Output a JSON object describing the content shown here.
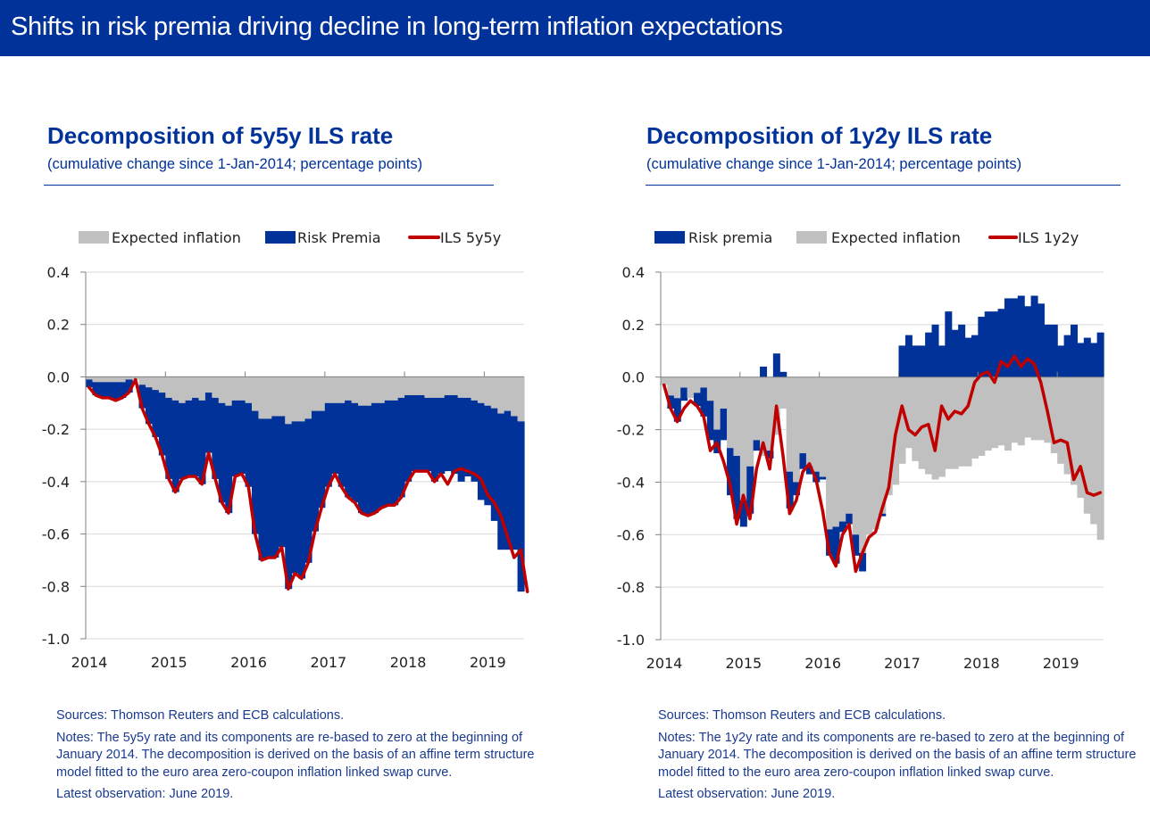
{
  "header": {
    "title": "Shifts in risk premia driving decline in long-term inflation expectations"
  },
  "colors": {
    "brand": "#003299",
    "risk_premia": "#003299",
    "expected_inflation": "#c0c0c0",
    "ils_line": "#c00000",
    "grid": "#d9d9d9",
    "axis": "#808080"
  },
  "chart_data": [
    {
      "type": "bar",
      "stacked": true,
      "title": "Decomposition of 5y5y ILS rate",
      "subtitle": "(cumulative change since 1-Jan-2014; percentage points)",
      "xlabel": "",
      "ylabel": "",
      "ylim": [
        -1.0,
        0.4
      ],
      "yticks": [
        "0.4",
        "0.2",
        "0.0",
        "-0.2",
        "-0.4",
        "-0.6",
        "-0.8",
        "-1.0"
      ],
      "ytick_values": [
        0.4,
        0.2,
        0.0,
        -0.2,
        -0.4,
        -0.6,
        -0.8,
        -1.0
      ],
      "xticks": [
        "2014",
        "2015",
        "2016",
        "2017",
        "2018",
        "2019"
      ],
      "grid": true,
      "legend_position": "top",
      "legend": [
        {
          "name": "Expected inflation",
          "kind": "bar",
          "color": "#c0c0c0"
        },
        {
          "name": "Risk Premia",
          "kind": "bar",
          "color": "#003299"
        },
        {
          "name": "ILS 5y5y",
          "kind": "line",
          "color": "#c00000"
        }
      ],
      "frequency": "monthly",
      "start": "2014-01",
      "end": "2019-06",
      "series": [
        {
          "name": "Expected inflation",
          "values": [
            -0.01,
            -0.02,
            -0.02,
            -0.02,
            -0.02,
            -0.02,
            -0.01,
            -0.01,
            -0.03,
            -0.04,
            -0.05,
            -0.06,
            -0.08,
            -0.09,
            -0.1,
            -0.09,
            -0.08,
            -0.09,
            -0.06,
            -0.08,
            -0.1,
            -0.11,
            -0.09,
            -0.09,
            -0.1,
            -0.13,
            -0.16,
            -0.16,
            -0.15,
            -0.15,
            -0.18,
            -0.17,
            -0.17,
            -0.16,
            -0.13,
            -0.13,
            -0.1,
            -0.1,
            -0.1,
            -0.09,
            -0.1,
            -0.11,
            -0.11,
            -0.1,
            -0.1,
            -0.09,
            -0.09,
            -0.08,
            -0.07,
            -0.07,
            -0.07,
            -0.08,
            -0.08,
            -0.08,
            -0.07,
            -0.07,
            -0.08,
            -0.08,
            -0.09,
            -0.1,
            -0.11,
            -0.12,
            -0.14,
            -0.13,
            -0.15,
            -0.17
          ]
        },
        {
          "name": "Risk Premia",
          "values": [
            -0.03,
            -0.05,
            -0.06,
            -0.06,
            -0.07,
            -0.06,
            -0.05,
            0.0,
            -0.09,
            -0.14,
            -0.18,
            -0.24,
            -0.31,
            -0.35,
            -0.29,
            -0.29,
            -0.3,
            -0.32,
            -0.23,
            -0.31,
            -0.38,
            -0.41,
            -0.29,
            -0.28,
            -0.32,
            -0.47,
            -0.54,
            -0.53,
            -0.54,
            -0.5,
            -0.63,
            -0.58,
            -0.6,
            -0.55,
            -0.46,
            -0.37,
            -0.32,
            -0.27,
            -0.32,
            -0.37,
            -0.38,
            -0.41,
            -0.42,
            -0.42,
            -0.4,
            -0.4,
            -0.4,
            -0.38,
            -0.33,
            -0.29,
            -0.29,
            -0.28,
            -0.32,
            -0.29,
            -0.29,
            -0.3,
            -0.32,
            -0.3,
            -0.31,
            -0.37,
            -0.38,
            -0.43,
            -0.52,
            -0.53,
            -0.51,
            -0.65
          ]
        },
        {
          "name": "ILS 5y5y",
          "values": [
            -0.04,
            -0.07,
            -0.08,
            -0.08,
            -0.09,
            -0.08,
            -0.06,
            -0.01,
            -0.12,
            -0.18,
            -0.23,
            -0.3,
            -0.39,
            -0.44,
            -0.39,
            -0.38,
            -0.38,
            -0.41,
            -0.29,
            -0.39,
            -0.48,
            -0.52,
            -0.38,
            -0.37,
            -0.42,
            -0.6,
            -0.7,
            -0.69,
            -0.69,
            -0.65,
            -0.81,
            -0.75,
            -0.77,
            -0.71,
            -0.59,
            -0.5,
            -0.42,
            -0.37,
            -0.42,
            -0.46,
            -0.48,
            -0.52,
            -0.53,
            -0.52,
            -0.5,
            -0.49,
            -0.49,
            -0.46,
            -0.4,
            -0.36,
            -0.36,
            -0.36,
            -0.4,
            -0.37,
            -0.41,
            -0.36,
            -0.35,
            -0.36,
            -0.37,
            -0.39,
            -0.45,
            -0.48,
            -0.53,
            -0.61,
            -0.69,
            -0.66,
            -0.82
          ]
        }
      ]
    },
    {
      "type": "bar",
      "stacked": true,
      "title": "Decomposition of 1y2y ILS rate",
      "subtitle": "(cumulative change since 1-Jan-2014; percentage points)",
      "xlabel": "",
      "ylabel": "",
      "ylim": [
        -1.0,
        0.4
      ],
      "yticks": [
        "0.4",
        "0.2",
        "0.0",
        "-0.2",
        "-0.4",
        "-0.6",
        "-0.8",
        "-1.0"
      ],
      "ytick_values": [
        0.4,
        0.2,
        0.0,
        -0.2,
        -0.4,
        -0.6,
        -0.8,
        -1.0
      ],
      "xticks": [
        "2014",
        "2015",
        "2016",
        "2017",
        "2018",
        "2019"
      ],
      "grid": true,
      "legend_position": "top",
      "legend": [
        {
          "name": "Risk premia",
          "kind": "bar",
          "color": "#003299"
        },
        {
          "name": "Expected inflation",
          "kind": "bar",
          "color": "#c0c0c0"
        },
        {
          "name": "ILS 1y2y",
          "kind": "line",
          "color": "#c00000"
        }
      ],
      "frequency": "monthly",
      "start": "2014-01",
      "end": "2019-06",
      "series": [
        {
          "name": "Risk premia",
          "values": [
            0.0,
            -0.05,
            -0.09,
            -0.05,
            -0.0,
            -0.05,
            -0.11,
            -0.15,
            -0.09,
            -0.12,
            -0.18,
            -0.24,
            -0.1,
            -0.18,
            -0.04,
            0.04,
            -0.03,
            0.09,
            0.02,
            -0.14,
            -0.05,
            -0.06,
            -0.03,
            -0.04,
            -0.01,
            -0.1,
            -0.14,
            -0.04,
            -0.04,
            -0.08,
            -0.07,
            0.0,
            0.0,
            -0.01,
            -0.0,
            0.0,
            0.12,
            0.16,
            0.12,
            0.12,
            0.17,
            0.2,
            0.12,
            0.25,
            0.18,
            0.2,
            0.15,
            0.16,
            0.23,
            0.25,
            0.25,
            0.26,
            0.3,
            0.3,
            0.31,
            0.27,
            0.31,
            0.28,
            0.2,
            0.2,
            0.12,
            0.16,
            0.2,
            0.13,
            0.15,
            0.13,
            0.17
          ]
        },
        {
          "name": "Expected inflation",
          "values": [
            -0.03,
            -0.07,
            -0.08,
            -0.04,
            -0.08,
            -0.06,
            -0.04,
            -0.09,
            -0.2,
            -0.12,
            -0.27,
            -0.3,
            -0.47,
            -0.34,
            -0.24,
            -0.3,
            -0.28,
            -0.22,
            -0.12,
            -0.36,
            -0.4,
            -0.29,
            -0.34,
            -0.36,
            -0.38,
            -0.58,
            -0.57,
            -0.55,
            -0.52,
            -0.6,
            -0.67,
            -0.6,
            -0.58,
            -0.52,
            -0.45,
            -0.41,
            -0.33,
            -0.27,
            -0.32,
            -0.35,
            -0.37,
            -0.39,
            -0.38,
            -0.35,
            -0.35,
            -0.34,
            -0.34,
            -0.31,
            -0.3,
            -0.28,
            -0.27,
            -0.26,
            -0.28,
            -0.25,
            -0.26,
            -0.23,
            -0.24,
            -0.24,
            -0.25,
            -0.29,
            -0.33,
            -0.37,
            -0.41,
            -0.46,
            -0.52,
            -0.56,
            -0.62
          ]
        },
        {
          "name": "ILS 1y2y",
          "values": [
            -0.03,
            -0.12,
            -0.17,
            -0.12,
            -0.09,
            -0.11,
            -0.15,
            -0.28,
            -0.25,
            -0.32,
            -0.41,
            -0.56,
            -0.45,
            -0.54,
            -0.35,
            -0.25,
            -0.35,
            -0.11,
            -0.3,
            -0.52,
            -0.47,
            -0.36,
            -0.33,
            -0.39,
            -0.51,
            -0.67,
            -0.72,
            -0.6,
            -0.56,
            -0.74,
            -0.67,
            -0.61,
            -0.59,
            -0.5,
            -0.42,
            -0.22,
            -0.11,
            -0.2,
            -0.22,
            -0.19,
            -0.18,
            -0.28,
            -0.11,
            -0.16,
            -0.13,
            -0.14,
            -0.11,
            -0.02,
            0.01,
            0.02,
            -0.02,
            0.06,
            0.04,
            0.08,
            0.04,
            0.07,
            0.05,
            -0.02,
            -0.13,
            -0.25,
            -0.24,
            -0.25,
            -0.39,
            -0.34,
            -0.44,
            -0.45,
            -0.44
          ]
        }
      ]
    }
  ],
  "footnotes": [
    {
      "sources": "Sources: Thomson Reuters and ECB calculations.",
      "notes": "Notes: The 5y5y rate and its components are  re-based  to zero at the beginning of January 2014. The decomposition is derived on the basis of an affine term structure model fitted to the euro area zero-coupon inflation linked swap curve.",
      "latest": "Latest observation: June 2019."
    },
    {
      "sources": "Sources: Thomson Reuters and ECB calculations.",
      "notes": "Notes: The 1y2y rate and its components are  re-based  to zero at the beginning of January 2014. The decomposition is derived on the basis of an affine term structure model fitted to the euro area zero-coupon inflation linked swap curve.",
      "latest": "Latest observation: June 2019."
    }
  ]
}
